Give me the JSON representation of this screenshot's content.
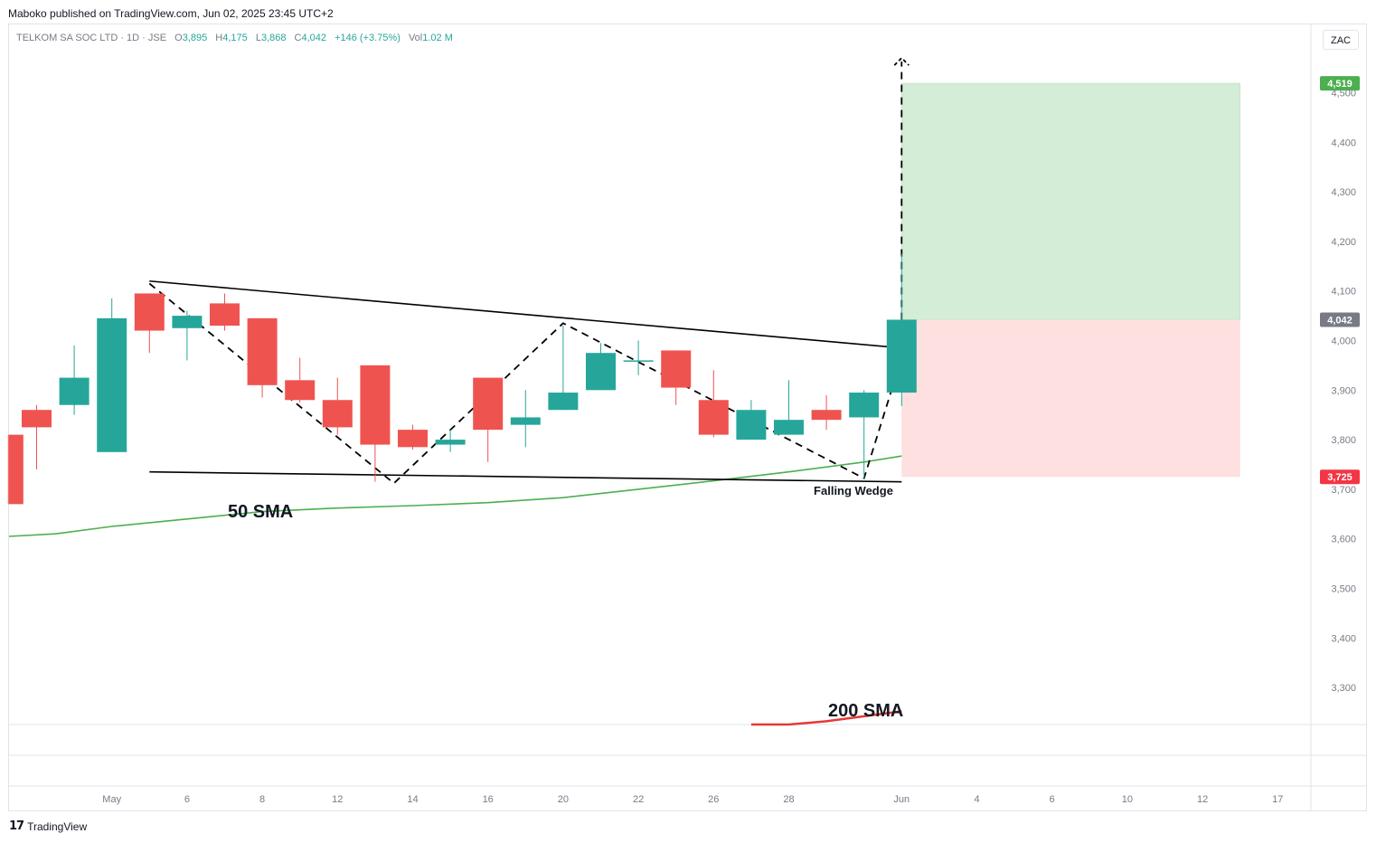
{
  "header": {
    "published": "Maboko published on TradingView.com, Jun 02, 2025 23:45 UTC+2"
  },
  "legend": {
    "symbol": "TELKOM SA SOC LTD · 1D · JSE",
    "o_label": "O",
    "o_value": "3,895",
    "h_label": "H",
    "h_value": "4,175",
    "l_label": "L",
    "l_value": "3,868",
    "c_label": "C",
    "c_value": "4,042",
    "change": "+146 (+3.75%)",
    "vol_label": "Vol",
    "vol_value": "1.02 M"
  },
  "currency_button": "ZAC",
  "footer": {
    "logo": "17",
    "brand": "TradingView"
  },
  "colors": {
    "up": "#26a69a",
    "down": "#ef5350",
    "sma50": "#4caf50",
    "sma200": "#e53935",
    "target_zone": "#d4edd6",
    "stop_zone": "#fde0df"
  },
  "chart_data": {
    "type": "candlestick",
    "ylim": [
      3210,
      4580
    ],
    "y_ticks": [
      "3,300",
      "3,400",
      "3,500",
      "3,600",
      "3,700",
      "3,800",
      "3,900",
      "4,000",
      "4,100",
      "4,200",
      "4,300",
      "4,400",
      "4,500"
    ],
    "y_tick_values": [
      3300,
      3400,
      3500,
      3600,
      3700,
      3800,
      3900,
      4000,
      4100,
      4200,
      4300,
      4400,
      4500
    ],
    "x_ticks": [
      "May",
      "6",
      "8",
      "12",
      "14",
      "16",
      "20",
      "22",
      "26",
      "28",
      "Jun",
      "4",
      "6",
      "10",
      "12",
      "17"
    ],
    "x_tick_index": [
      2,
      4,
      6,
      8,
      10,
      12,
      14,
      16,
      18,
      20,
      23,
      25,
      27,
      29,
      31,
      33
    ],
    "candles": [
      {
        "i": -0.75,
        "o": 3810,
        "h": 3810,
        "l": 3670,
        "c": 3670
      },
      {
        "i": 0,
        "o": 3860,
        "h": 3870,
        "l": 3740,
        "c": 3825
      },
      {
        "i": 1,
        "o": 3870,
        "h": 3990,
        "l": 3850,
        "c": 3925
      },
      {
        "i": 2,
        "o": 3775,
        "h": 4085,
        "l": 3775,
        "c": 4045
      },
      {
        "i": 3,
        "o": 4095,
        "h": 4095,
        "l": 3975,
        "c": 4020
      },
      {
        "i": 4,
        "o": 4025,
        "h": 4060,
        "l": 3960,
        "c": 4050
      },
      {
        "i": 5,
        "o": 4075,
        "h": 4095,
        "l": 4020,
        "c": 4030
      },
      {
        "i": 6,
        "o": 4045,
        "h": 4045,
        "l": 3885,
        "c": 3910
      },
      {
        "i": 7,
        "o": 3920,
        "h": 3965,
        "l": 3875,
        "c": 3880
      },
      {
        "i": 8,
        "o": 3880,
        "h": 3925,
        "l": 3810,
        "c": 3825
      },
      {
        "i": 9,
        "o": 3950,
        "h": 3950,
        "l": 3715,
        "c": 3790
      },
      {
        "i": 10,
        "o": 3820,
        "h": 3830,
        "l": 3780,
        "c": 3785
      },
      {
        "i": 11,
        "o": 3790,
        "h": 3820,
        "l": 3775,
        "c": 3800
      },
      {
        "i": 12,
        "o": 3925,
        "h": 3925,
        "l": 3755,
        "c": 3820
      },
      {
        "i": 13,
        "o": 3830,
        "h": 3900,
        "l": 3785,
        "c": 3845
      },
      {
        "i": 14,
        "o": 3860,
        "h": 4030,
        "l": 3860,
        "c": 3895
      },
      {
        "i": 15,
        "o": 3900,
        "h": 3995,
        "l": 3900,
        "c": 3975
      },
      {
        "i": 16,
        "o": 3960,
        "h": 4000,
        "l": 3930,
        "c": 3960
      },
      {
        "i": 17,
        "o": 3980,
        "h": 3980,
        "l": 3870,
        "c": 3905
      },
      {
        "i": 18,
        "o": 3880,
        "h": 3940,
        "l": 3805,
        "c": 3810
      },
      {
        "i": 19,
        "o": 3800,
        "h": 3880,
        "l": 3800,
        "c": 3860
      },
      {
        "i": 20,
        "o": 3810,
        "h": 3920,
        "l": 3810,
        "c": 3840
      },
      {
        "i": 21,
        "o": 3860,
        "h": 3890,
        "l": 3820,
        "c": 3840
      },
      {
        "i": 22,
        "o": 3845,
        "h": 3900,
        "l": 3720,
        "c": 3895
      },
      {
        "i": 23,
        "o": 3895,
        "h": 4175,
        "l": 3868,
        "c": 4042
      }
    ],
    "sma50": {
      "label": "50 SMA",
      "points": [
        [
          -1,
          3605
        ],
        [
          0.5,
          3610
        ],
        [
          2,
          3625
        ],
        [
          4,
          3640
        ],
        [
          6,
          3655
        ],
        [
          8,
          3662
        ],
        [
          10,
          3667
        ],
        [
          12,
          3673
        ],
        [
          14,
          3683
        ],
        [
          16,
          3700
        ],
        [
          18,
          3717
        ],
        [
          20,
          3735
        ],
        [
          22,
          3755
        ],
        [
          23,
          3767
        ]
      ]
    },
    "sma200": {
      "label": "200 SMA",
      "points": [
        [
          19,
          3210
        ],
        [
          20,
          3222
        ],
        [
          21,
          3232
        ],
        [
          22,
          3242
        ],
        [
          23,
          3252
        ]
      ]
    },
    "pattern": {
      "label": "Falling Wedge",
      "upper_line": [
        [
          3,
          4120
        ],
        [
          23,
          3985
        ]
      ],
      "lower_line": [
        [
          3,
          3735
        ],
        [
          23,
          3715
        ]
      ],
      "zigzag": [
        [
          3,
          4115
        ],
        [
          9.5,
          3712
        ],
        [
          14,
          4035
        ],
        [
          22,
          3722
        ],
        [
          23,
          3965
        ]
      ],
      "target_arrow": {
        "x": 23,
        "from": 3965,
        "to": 4570
      }
    },
    "position": {
      "entry": 4042,
      "target": 4519,
      "stop": 3725,
      "target_label": "4,519",
      "entry_label": "4,042",
      "stop_label": "3,725",
      "x_from": 23,
      "x_to": 32
    }
  }
}
